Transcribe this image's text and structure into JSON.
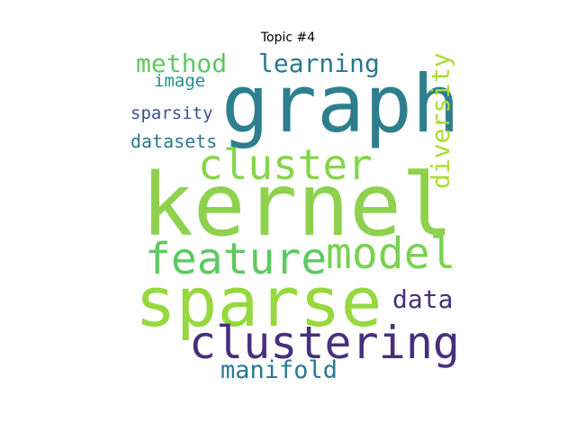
{
  "title": "Topic #4",
  "words": [
    {
      "text": "kernel",
      "color": "#8fd14f"
    },
    {
      "text": "graph",
      "color": "#2d7f8e"
    },
    {
      "text": "sparse",
      "color": "#96d83e"
    },
    {
      "text": "clustering",
      "color": "#46307d"
    },
    {
      "text": "cluster",
      "color": "#85d54a"
    },
    {
      "text": "feature",
      "color": "#5ec962"
    },
    {
      "text": "model",
      "color": "#79d151"
    },
    {
      "text": "method",
      "color": "#5ec962"
    },
    {
      "text": "learning",
      "color": "#2a788e"
    },
    {
      "text": "diversity",
      "color": "#aadc32"
    },
    {
      "text": "manifold",
      "color": "#2a788e"
    },
    {
      "text": "data",
      "color": "#46307d"
    },
    {
      "text": "image",
      "color": "#21908c"
    },
    {
      "text": "sparsity",
      "color": "#3b528b"
    },
    {
      "text": "datasets",
      "color": "#2a788e"
    }
  ]
}
